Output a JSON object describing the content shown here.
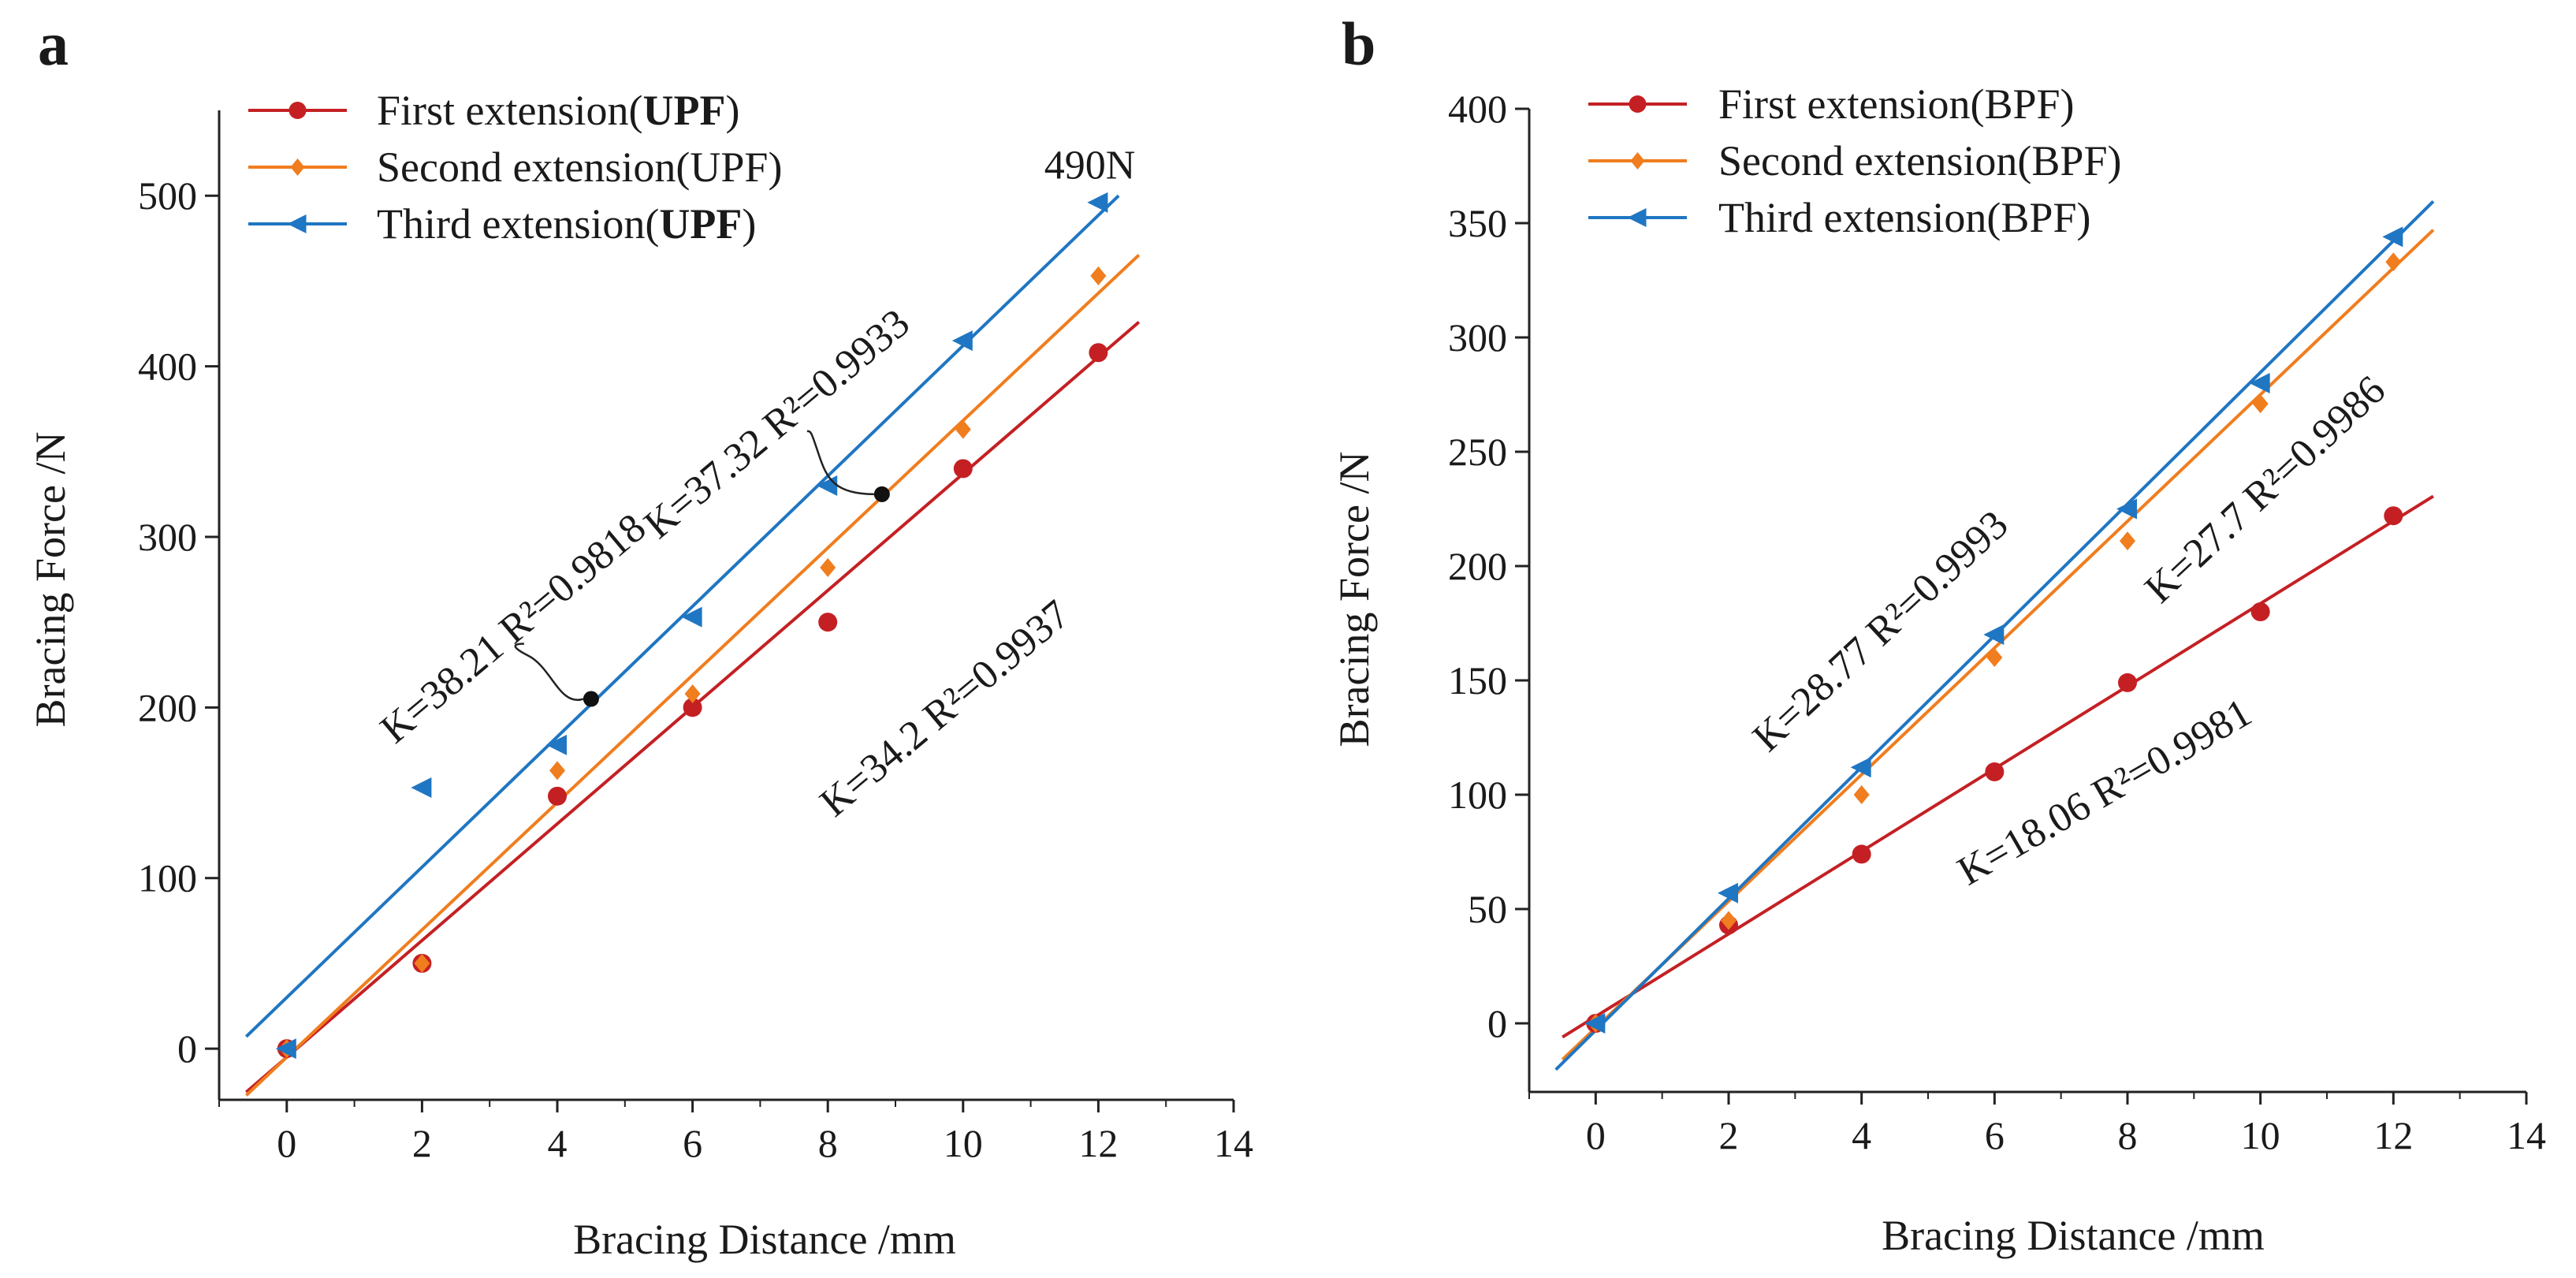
{
  "chart_data": [
    {
      "type": "scatter",
      "panel_label": "a",
      "xlabel": "Bracing Distance /mm",
      "ylabel": "Bracing Force /N",
      "xlim": [
        -1,
        14
      ],
      "ylim": [
        -30,
        550
      ],
      "xticks": [
        "0",
        "2",
        "4",
        "6",
        "8",
        "10",
        "12",
        "14"
      ],
      "yticks": [
        "0",
        "100",
        "200",
        "300",
        "400",
        "500"
      ],
      "legend_position": "top-left",
      "series": [
        {
          "name": "First extension(UPF)",
          "legend_prefix": "First extension(",
          "legend_bold": "UPF",
          "legend_suffix": ")",
          "color": "#c42024",
          "marker": "circle",
          "x": [
            0,
            2,
            4,
            6,
            8,
            10,
            12
          ],
          "y": [
            0,
            50,
            148,
            200,
            250,
            340,
            408
          ],
          "fit": {
            "K": 34.2,
            "intercept": -5,
            "x_range": [
              -0.6,
              12.6
            ]
          }
        },
        {
          "name": "Second extension(UPF)",
          "legend_prefix": "Second extension(UPF)",
          "legend_bold": "",
          "legend_suffix": "",
          "color": "#f07d1e",
          "marker": "diamond",
          "x": [
            0,
            2,
            4,
            6,
            8,
            10,
            12
          ],
          "y": [
            0,
            50,
            163,
            208,
            282,
            363,
            453
          ],
          "fit": {
            "K": 37.32,
            "intercept": -5,
            "x_range": [
              -0.6,
              12.6
            ]
          }
        },
        {
          "name": "Third extension(UPF)",
          "legend_prefix": "Third extension(",
          "legend_bold": "UPF",
          "legend_suffix": ")",
          "color": "#1f76c2",
          "marker": "triangle-left",
          "x": [
            0,
            2,
            4,
            6,
            8,
            10,
            12
          ],
          "y": [
            0,
            153,
            178,
            253,
            330,
            415,
            496
          ],
          "fit": {
            "K": 38.21,
            "intercept": 30,
            "x_range": [
              -0.6,
              12.3
            ]
          }
        }
      ],
      "annotations": [
        {
          "text": "490N",
          "x": 11.2,
          "y": 510,
          "rotation": 0
        },
        {
          "text": "K=38.21 R²=0.9818",
          "x": 1.6,
          "y": 178,
          "rotation": -40
        },
        {
          "text": "K=37.32 R²=0.9933",
          "x": 5.5,
          "y": 298,
          "rotation": -40
        },
        {
          "text": "K=34.2 R²=0.9937",
          "x": 8.1,
          "y": 135,
          "rotation": -40
        }
      ],
      "callouts": [
        {
          "x": 4.5,
          "y": 205
        },
        {
          "x": 8.8,
          "y": 325
        }
      ]
    },
    {
      "type": "scatter",
      "panel_label": "b",
      "xlabel": "Bracing Distance /mm",
      "ylabel": "Bracing Force /N",
      "xlim": [
        -1,
        14
      ],
      "ylim": [
        -30,
        400
      ],
      "xticks": [
        "0",
        "2",
        "4",
        "6",
        "8",
        "10",
        "12",
        "14"
      ],
      "yticks": [
        "0",
        "50",
        "100",
        "150",
        "200",
        "250",
        "300",
        "350",
        "400"
      ],
      "legend_position": "top-left",
      "series": [
        {
          "name": "First extension(BPF)",
          "legend_prefix": "First extension(BPF)",
          "legend_bold": "",
          "legend_suffix": "",
          "color": "#c42024",
          "marker": "circle",
          "x": [
            0,
            2,
            4,
            6,
            8,
            10,
            12
          ],
          "y": [
            0,
            43,
            74,
            110,
            149,
            180,
            222
          ],
          "fit": {
            "K": 18.06,
            "intercept": 3,
            "x_range": [
              -0.5,
              12.6
            ]
          }
        },
        {
          "name": "Second extension(BPF)",
          "legend_prefix": "Second extension(BPF)",
          "legend_bold": "",
          "legend_suffix": "",
          "color": "#f07d1e",
          "marker": "diamond",
          "x": [
            0,
            2,
            4,
            6,
            8,
            10,
            12
          ],
          "y": [
            0,
            45,
            100,
            160,
            211,
            271,
            333
          ],
          "fit": {
            "K": 27.7,
            "intercept": -2,
            "x_range": [
              -0.5,
              12.6
            ]
          }
        },
        {
          "name": "Third extension(BPF)",
          "legend_prefix": "Third extension(BPF)",
          "legend_bold": "",
          "legend_suffix": "",
          "color": "#1f76c2",
          "marker": "triangle-left",
          "x": [
            0,
            2,
            4,
            6,
            8,
            10,
            12
          ],
          "y": [
            0,
            57,
            112,
            170,
            225,
            280,
            344
          ],
          "fit": {
            "K": 28.77,
            "intercept": -3,
            "x_range": [
              -0.6,
              12.6
            ]
          }
        }
      ],
      "annotations": [
        {
          "text": "K=28.77 R²=0.9993",
          "x": 2.6,
          "y": 118,
          "rotation": -43
        },
        {
          "text": "K=27.7 R²=0.9986",
          "x": 8.5,
          "y": 183,
          "rotation": -43
        },
        {
          "text": "K=18.06 R²=0.9981",
          "x": 5.6,
          "y": 60,
          "rotation": -30
        }
      ],
      "callouts": []
    }
  ]
}
